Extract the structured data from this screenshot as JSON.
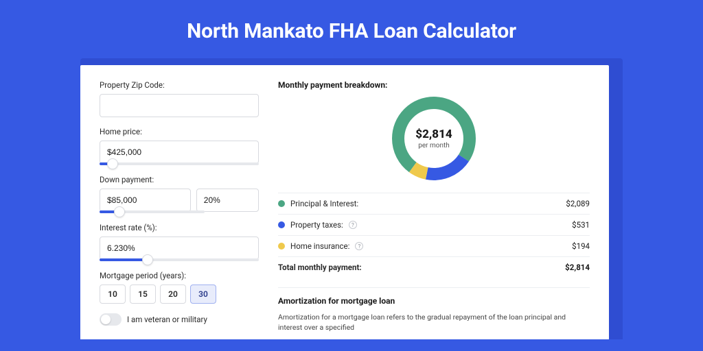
{
  "header": {
    "title": "North Mankato FHA Loan Calculator"
  },
  "colors": {
    "page_bg": "#3659e3",
    "panel_shadow": "#2f4dd2",
    "panel_bg": "#ffffff",
    "principal": "#4ba683",
    "taxes": "#3659e3",
    "insurance": "#efc94c",
    "border": "#d7d9de",
    "track": "#e6e8ec"
  },
  "form": {
    "zip": {
      "label": "Property Zip Code:",
      "value": ""
    },
    "home_price": {
      "label": "Home price:",
      "value": "$425,000",
      "slider_pct": 8
    },
    "down_payment": {
      "label": "Down payment:",
      "value": "$85,000",
      "pct_value": "20%",
      "slider_pct": 19
    },
    "interest_rate": {
      "label": "Interest rate (%):",
      "value": "6.230%",
      "slider_pct": 30
    },
    "mortgage_period": {
      "label": "Mortgage period (years):",
      "options": [
        "10",
        "15",
        "20",
        "30"
      ],
      "selected": "30"
    },
    "veteran": {
      "label": "I am veteran or military",
      "on": false
    }
  },
  "breakdown": {
    "title": "Monthly payment breakdown:",
    "center_amount": "$2,814",
    "center_sub": "per month",
    "donut": {
      "principal_pct": 74.2,
      "taxes_pct": 18.9,
      "insurance_pct": 6.9,
      "stroke_width": 18
    },
    "rows": [
      {
        "key": "principal",
        "label": "Principal & Interest:",
        "value": "$2,089",
        "info": false
      },
      {
        "key": "taxes",
        "label": "Property taxes:",
        "value": "$531",
        "info": true
      },
      {
        "key": "insurance",
        "label": "Home insurance:",
        "value": "$194",
        "info": true
      }
    ],
    "total": {
      "label": "Total monthly payment:",
      "value": "$2,814"
    }
  },
  "amortization": {
    "title": "Amortization for mortgage loan",
    "text": "Amortization for a mortgage loan refers to the gradual repayment of the loan principal and interest over a specified"
  }
}
